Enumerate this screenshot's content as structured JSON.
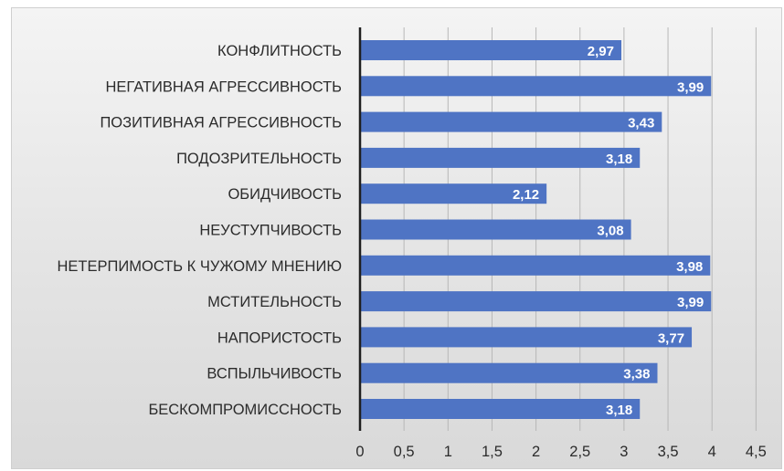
{
  "chart_data": {
    "type": "bar",
    "orientation": "horizontal",
    "title": "",
    "xlabel": "",
    "ylabel": "",
    "categories": [
      "КОНФЛИТНОСТЬ",
      "НЕГАТИВНАЯ АГРЕССИВНОСТЬ",
      "ПОЗИТИВНАЯ АГРЕССИВНОСТЬ",
      "ПОДОЗРИТЕЛЬНОСТЬ",
      "ОБИДЧИВОСТЬ",
      "НЕУСТУПЧИВОСТЬ",
      "НЕТЕРПИМОСТЬ К ЧУЖОМУ МНЕНИЮ",
      "МСТИТЕЛЬНОСТЬ",
      "НАПОРИСТОСТЬ",
      "ВСПЫЛЬЧИВОСТЬ",
      "БЕСКОМПРОМИССНОСТЬ"
    ],
    "values": [
      2.97,
      3.99,
      3.43,
      3.18,
      2.12,
      3.08,
      3.98,
      3.99,
      3.77,
      3.38,
      3.18
    ],
    "value_labels": [
      "2,97",
      "3,99",
      "3,43",
      "3,18",
      "2,12",
      "3,08",
      "3,98",
      "3,99",
      "3,77",
      "3,38",
      "3,18"
    ],
    "xlim": [
      0,
      4.5
    ],
    "x_ticks": [
      0,
      0.5,
      1,
      1.5,
      2,
      2.5,
      3,
      3.5,
      4,
      4.5
    ],
    "x_tick_labels": [
      "0",
      "0,5",
      "1",
      "1,5",
      "2",
      "2,5",
      "3",
      "3,5",
      "4",
      "4,5"
    ],
    "grid": "vertical",
    "bar_color": "#4f74c4",
    "legend": "none"
  }
}
